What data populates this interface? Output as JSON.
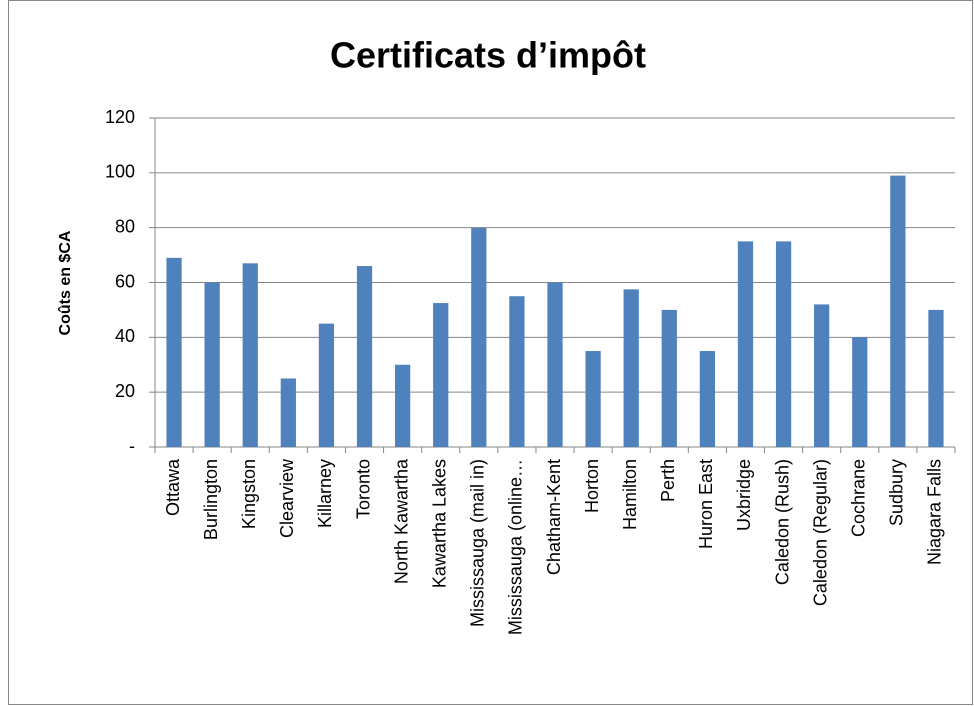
{
  "chart_data": {
    "type": "bar",
    "title": "Certificats d’impôt",
    "y_label": "Coûts en $CA",
    "categories": [
      "Ottawa",
      "Burlington",
      "Kingston",
      "Clearview",
      "Killarney",
      "Toronto",
      "North Kawartha",
      "Kawartha Lakes",
      "Mississauga (mail in)",
      "Mississauga (online…",
      "Chatham-Kent",
      "Horton",
      "Hamilton",
      "Perth",
      "Huron East",
      "Uxbridge",
      "Caledon (Rush)",
      "Caledon (Regular)",
      "Cochrane",
      "Sudbury",
      "Niagara Falls"
    ],
    "values": [
      69,
      60,
      67,
      25,
      45,
      66,
      30,
      52.5,
      80,
      55,
      60,
      35,
      57.5,
      50,
      35,
      75,
      75,
      52,
      40,
      99,
      50
    ],
    "color": "#4f81bd",
    "ylim": [
      0,
      120
    ],
    "yticks": [
      {
        "value": 0,
        "label": "-"
      },
      20,
      40,
      60,
      80,
      100,
      120
    ],
    "grid": true
  }
}
